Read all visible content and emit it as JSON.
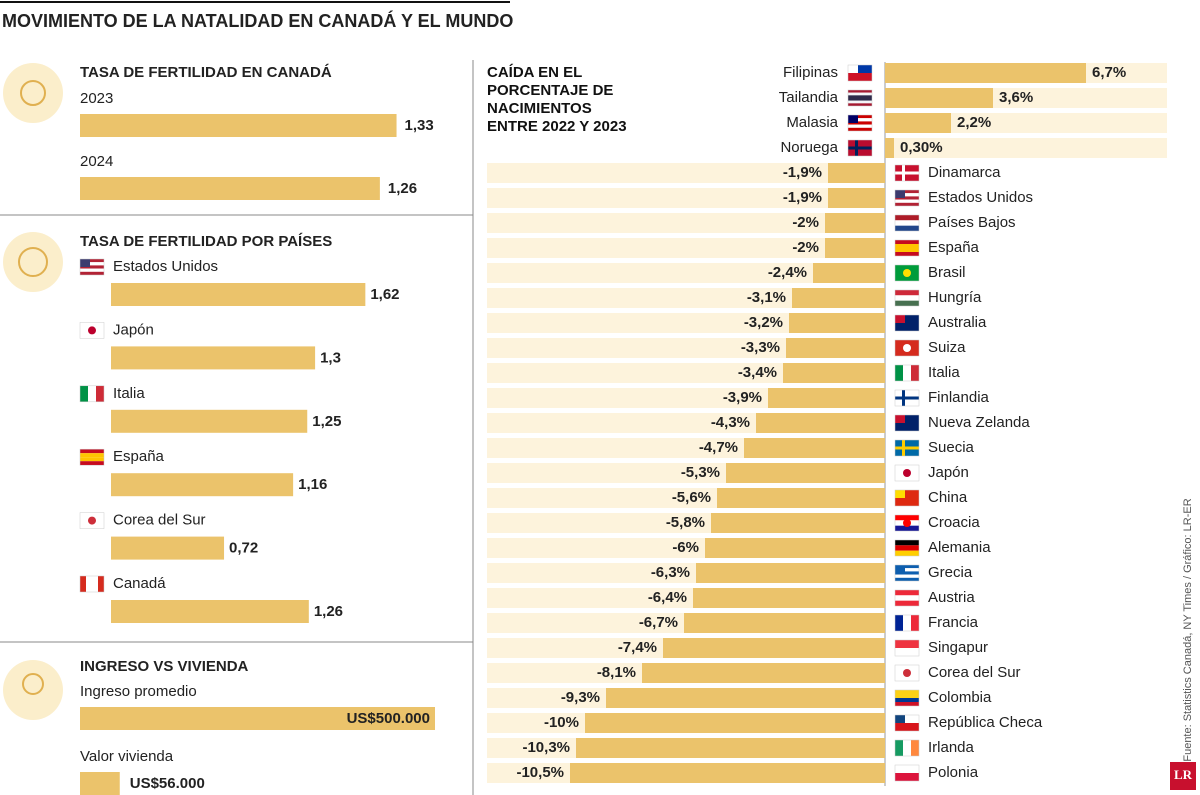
{
  "title": "MOVIMIENTO DE LA NATALIDAD EN CANADÁ Y EL MUNDO",
  "source": "Fuente: Statistics Canadá, NY Times / Gráfico: LR-ER",
  "logo": "LR",
  "chart_data": [
    {
      "type": "bar",
      "title": "TASA DE FERTILIDAD EN CANADÁ",
      "categories": [
        "2023",
        "2024"
      ],
      "values": [
        1.33,
        1.26
      ],
      "value_labels": [
        "1,33",
        "1,26"
      ],
      "color": "#ebc36b"
    },
    {
      "type": "bar",
      "title": "TASA DE FERTILIDAD POR PAÍSES",
      "categories": [
        "Estados Unidos",
        "Japón",
        "Italia",
        "España",
        "Corea del Sur",
        "Canadá"
      ],
      "values": [
        1.62,
        1.3,
        1.25,
        1.16,
        0.72,
        1.26
      ],
      "value_labels": [
        "1,62",
        "1,3",
        "1,25",
        "1,16",
        "0,72",
        "1,26"
      ],
      "color": "#ebc36b"
    },
    {
      "type": "bar",
      "title": "INGRESO VS VIVIENDA",
      "categories": [
        "Ingreso promedio",
        "Valor vivienda"
      ],
      "values": [
        500000,
        56000
      ],
      "value_labels": [
        "US$500.000",
        "US$56.000"
      ],
      "color": "#ebc36b"
    },
    {
      "type": "diverging-bar",
      "title": "CAÍDA EN EL PORCENTAJE DE NACIMIENTOS ENTRE 2022 Y 2023",
      "categories": [
        "Filipinas",
        "Tailandia",
        "Malasia",
        "Noruega",
        "Dinamarca",
        "Estados Unidos",
        "Países Bajos",
        "España",
        "Brasil",
        "Hungría",
        "Australia",
        "Suiza",
        "Italia",
        "Finlandia",
        "Nueva Zelanda",
        "Suecia",
        "Japón",
        "China",
        "Croacia",
        "Alemania",
        "Grecia",
        "Austria",
        "Francia",
        "Singapur",
        "Corea del Sur",
        "Colombia",
        "República Checa",
        "Irlanda",
        "Polonia"
      ],
      "values": [
        6.7,
        3.6,
        2.2,
        0.3,
        -1.9,
        -1.9,
        -2,
        -2,
        -2.4,
        -3.1,
        -3.2,
        -3.3,
        -3.4,
        -3.9,
        -4.3,
        -4.7,
        -5.3,
        -5.6,
        -5.8,
        -6,
        -6.3,
        -6.4,
        -6.7,
        -7.4,
        -8.1,
        -9.3,
        -10,
        -10.3,
        -10.5
      ],
      "value_labels": [
        "6,7%",
        "3,6%",
        "2,2%",
        "0,30%",
        "-1,9%",
        "-1,9%",
        "-2%",
        "-2%",
        "-2,4%",
        "-3,1%",
        "-3,2%",
        "-3,3%",
        "-3,4%",
        "-3,9%",
        "-4,3%",
        "-4,7%",
        "-5,3%",
        "-5,6%",
        "-5,8%",
        "-6%",
        "-6,3%",
        "-6,4%",
        "-6,7%",
        "-7,4%",
        "-8,1%",
        "-9,3%",
        "-10%",
        "-10,3%",
        "-10,5%"
      ],
      "color": "#ebc36b",
      "band_color": "#fdf3dc"
    }
  ]
}
